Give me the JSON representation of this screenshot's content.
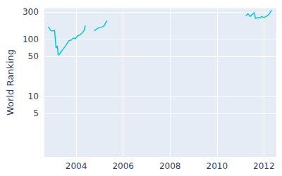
{
  "chart_data": {
    "type": "line",
    "y_label": "World Ranking",
    "x": [
      2002.81,
      2002.93,
      2003.05,
      2003.08,
      2003.14,
      2003.2,
      2003.23,
      2003.29,
      2003.35,
      2003.44,
      2003.53,
      2003.61,
      2003.7,
      2003.79,
      2003.88,
      2003.97,
      2004.06,
      2004.15,
      2004.24,
      2004.33,
      2004.39,
      2004.58,
      2004.77,
      2004.86,
      2004.95,
      2005.04,
      2005.13,
      2005.21,
      2005.27,
      2005.33,
      2008.0,
      2011.23,
      2011.32,
      2011.41,
      2011.5,
      2011.59,
      2011.64,
      2011.73,
      2011.82,
      2011.91,
      2012.0,
      2012.09,
      2012.18,
      2012.27,
      2012.33
    ],
    "values": [
      166,
      140,
      140,
      145,
      70,
      77,
      53,
      55,
      60,
      67,
      75,
      84,
      95,
      97,
      105,
      103,
      115,
      118,
      128,
      140,
      175,
      null,
      140,
      150,
      158,
      160,
      166,
      175,
      200,
      210,
      null,
      255,
      280,
      250,
      270,
      295,
      230,
      240,
      235,
      250,
      240,
      250,
      265,
      295,
      320
    ],
    "color": "#00ced1",
    "xlim": [
      2002.64,
      2012.53
    ],
    "xticks": [
      2004,
      2006,
      2008,
      2010,
      2012
    ],
    "ylim": [
      0.9,
      345
    ],
    "yticks": [
      5,
      10,
      50,
      100,
      300
    ],
    "log": "y",
    "grid": true
  }
}
